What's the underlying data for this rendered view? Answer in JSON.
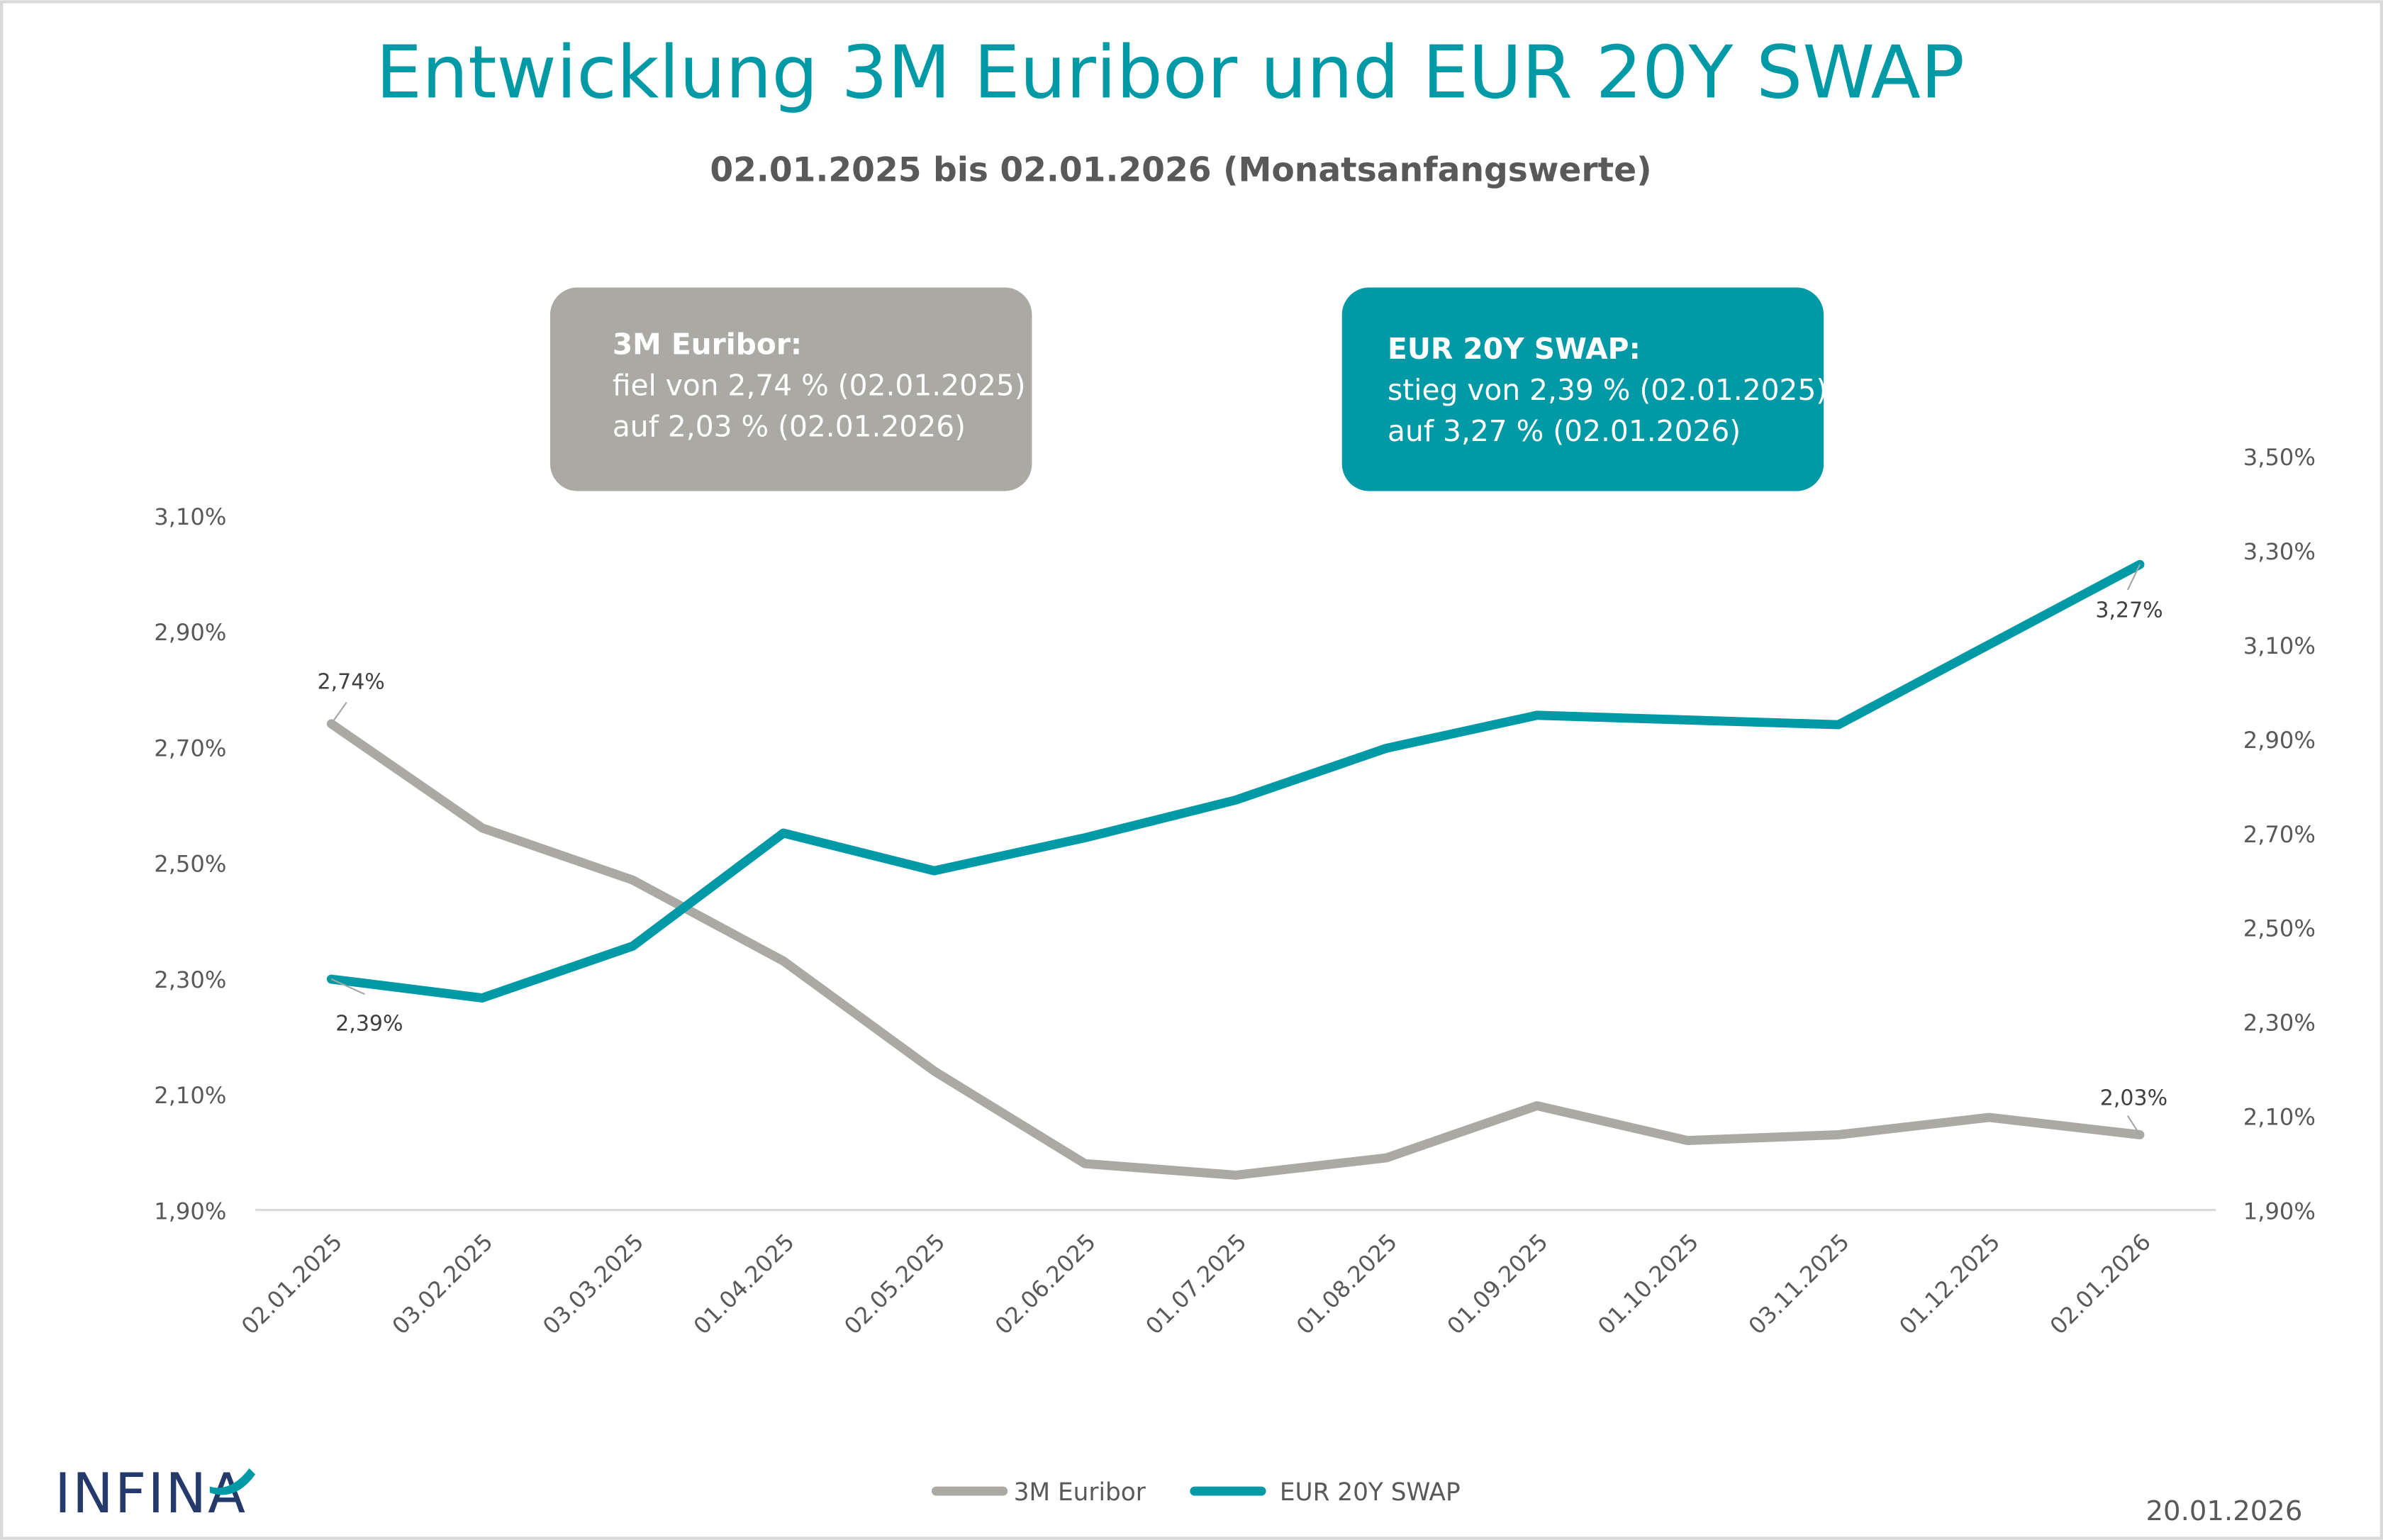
{
  "chart_data": {
    "type": "line",
    "title": "Entwicklung 3M Euribor und EUR 20Y SWAP",
    "subtitle": "02.01.2025 bis 02.01.2026 (Monatsanfangswerte)",
    "categories": [
      "02.01.2025",
      "03.02.2025",
      "03.03.2025",
      "01.04.2025",
      "02.05.2025",
      "02.06.2025",
      "01.07.2025",
      "01.08.2025",
      "01.09.2025",
      "01.10.2025",
      "03.11.2025",
      "01.12.2025",
      "02.01.2026"
    ],
    "series": [
      {
        "name": "3M Euribor",
        "axis": "left",
        "color": "#aaa9a3",
        "values": [
          2.74,
          2.56,
          2.47,
          2.33,
          2.14,
          1.98,
          1.96,
          1.99,
          2.08,
          2.02,
          2.03,
          2.06,
          2.03
        ]
      },
      {
        "name": "EUR 20Y SWAP",
        "axis": "right",
        "color": "#0099a6",
        "values": [
          2.39,
          2.35,
          2.46,
          2.7,
          2.62,
          2.69,
          2.77,
          2.88,
          2.95,
          2.94,
          2.93,
          3.1,
          3.27
        ]
      }
    ],
    "left_axis": {
      "ylim": [
        1.9,
        3.1
      ],
      "ticks": [
        "1,90%",
        "2,10%",
        "2,30%",
        "2,50%",
        "2,70%",
        "2,90%",
        "3,10%"
      ]
    },
    "right_axis": {
      "ylim": [
        1.9,
        3.5
      ],
      "ticks": [
        "1,90%",
        "2,10%",
        "2,30%",
        "2,50%",
        "2,70%",
        "2,90%",
        "3,10%",
        "3,30%",
        "3,50%"
      ]
    },
    "data_labels": {
      "euribor_first": "2,74%",
      "euribor_last": "2,03%",
      "swap_first": "2,39%",
      "swap_last": "3,27%"
    },
    "grid": false,
    "legend_position": "bottom"
  },
  "callouts": {
    "euribor": {
      "title": "3M Euribor:",
      "line1": "fiel von 2,74 % (02.01.2025)",
      "line2": "auf 2,03 % (02.01.2026)",
      "color": "#aaa9a3"
    },
    "swap": {
      "title": "EUR 20Y SWAP:",
      "line1": "stieg von 2,39 % (02.01.2025)",
      "line2": "auf 3,27 % (02.01.2026)",
      "color": "#0099a6"
    }
  },
  "footer": {
    "logo": "INFINA",
    "date": "20.01.2026"
  }
}
